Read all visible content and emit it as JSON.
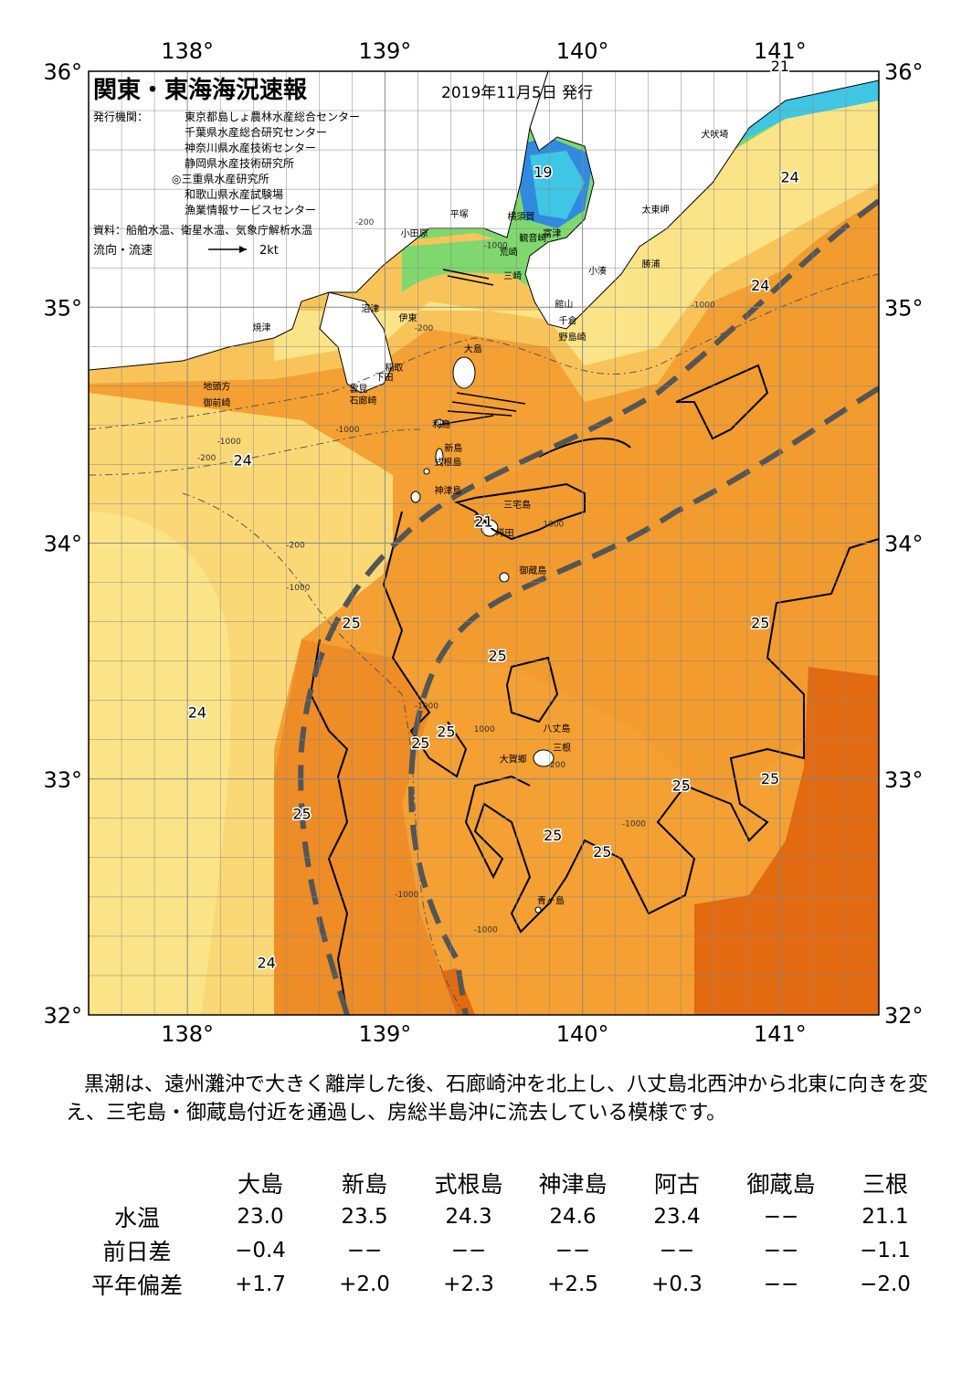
{
  "header": {
    "title": "関東・東海海況速報",
    "date": "2019年11月5日 発行",
    "publisher_label": "発行機関：",
    "publishers": [
      "東京都島しょ農林水産総合センター",
      "千葉県水産総合研究センター",
      "神奈川県水産技術センター",
      "静岡県水産技術研究所",
      "◎三重県水産研究所",
      "和歌山県水産試験場",
      "漁業情報サービスセンター"
    ],
    "source": "資料：船舶水温、衛星水温、気象庁解析水温",
    "current_legend": "流向・流速",
    "current_scale": "2kt"
  },
  "axes": {
    "lon_labels": [
      "138°",
      "139°",
      "140°",
      "141°"
    ],
    "lat_labels": [
      "36°",
      "35°",
      "34°",
      "33°",
      "32°"
    ],
    "lon_range": [
      137.5,
      141.5
    ],
    "lat_range": [
      32,
      36
    ]
  },
  "map_data": {
    "isotherm_labels": [
      {
        "text": "21",
        "lon": 141.0,
        "lat": 36.0
      },
      {
        "text": "19",
        "lon": 139.8,
        "lat": 35.55
      },
      {
        "text": "24",
        "lon": 141.05,
        "lat": 35.53
      },
      {
        "text": "24",
        "lon": 140.9,
        "lat": 35.07
      },
      {
        "text": "24",
        "lon": 138.28,
        "lat": 34.33
      },
      {
        "text": "21",
        "lon": 139.5,
        "lat": 34.07
      },
      {
        "text": "25",
        "lon": 138.83,
        "lat": 33.64
      },
      {
        "text": "25",
        "lon": 140.9,
        "lat": 33.64
      },
      {
        "text": "25",
        "lon": 139.57,
        "lat": 33.5
      },
      {
        "text": "24",
        "lon": 138.05,
        "lat": 33.26
      },
      {
        "text": "25",
        "lon": 139.31,
        "lat": 33.18
      },
      {
        "text": "25",
        "lon": 139.18,
        "lat": 33.13
      },
      {
        "text": "25",
        "lon": 140.5,
        "lat": 32.95
      },
      {
        "text": "25",
        "lon": 140.95,
        "lat": 32.98
      },
      {
        "text": "25",
        "lon": 138.58,
        "lat": 32.83
      },
      {
        "text": "25",
        "lon": 139.85,
        "lat": 32.74
      },
      {
        "text": "25",
        "lon": 140.1,
        "lat": 32.67
      },
      {
        "text": "24",
        "lon": 138.4,
        "lat": 32.2
      }
    ],
    "depth_labels": [
      {
        "text": "-200",
        "lon": 138.85,
        "lat": 35.35
      },
      {
        "text": "-1000",
        "lon": 139.5,
        "lat": 35.25
      },
      {
        "text": "-200",
        "lon": 139.15,
        "lat": 34.9
      },
      {
        "text": "-1000",
        "lon": 140.55,
        "lat": 35.0
      },
      {
        "text": "-1000",
        "lon": 138.15,
        "lat": 34.42
      },
      {
        "text": "-200",
        "lon": 138.05,
        "lat": 34.35
      },
      {
        "text": "-1000",
        "lon": 138.75,
        "lat": 34.47
      },
      {
        "text": "1000",
        "lon": 139.8,
        "lat": 34.07
      },
      {
        "text": "-200",
        "lon": 138.5,
        "lat": 33.98
      },
      {
        "text": "-1000",
        "lon": 138.5,
        "lat": 33.8
      },
      {
        "text": "1000",
        "lon": 139.45,
        "lat": 33.2
      },
      {
        "text": "-1000",
        "lon": 139.15,
        "lat": 33.3
      },
      {
        "text": "-200",
        "lon": 139.82,
        "lat": 33.05
      },
      {
        "text": "-1000",
        "lon": 140.2,
        "lat": 32.8
      },
      {
        "text": "-1000",
        "lon": 139.05,
        "lat": 32.5
      },
      {
        "text": "-1000",
        "lon": 139.45,
        "lat": 32.35
      }
    ],
    "places": [
      {
        "text": "犬吠埼",
        "lon": 140.6,
        "lat": 35.72
      },
      {
        "text": "太東岬",
        "lon": 140.3,
        "lat": 35.4
      },
      {
        "text": "勝浦",
        "lon": 140.3,
        "lat": 35.17
      },
      {
        "text": "小湊",
        "lon": 140.03,
        "lat": 35.14
      },
      {
        "text": "平塚",
        "lon": 139.33,
        "lat": 35.38
      },
      {
        "text": "横須賀",
        "lon": 139.62,
        "lat": 35.37
      },
      {
        "text": "観音崎",
        "lon": 139.68,
        "lat": 35.28
      },
      {
        "text": "富津",
        "lon": 139.8,
        "lat": 35.3
      },
      {
        "text": "小田原",
        "lon": 139.08,
        "lat": 35.3
      },
      {
        "text": "荒崎",
        "lon": 139.58,
        "lat": 35.22
      },
      {
        "text": "三崎",
        "lon": 139.6,
        "lat": 35.12
      },
      {
        "text": "館山",
        "lon": 139.86,
        "lat": 35.0
      },
      {
        "text": "千倉",
        "lon": 139.88,
        "lat": 34.93
      },
      {
        "text": "野島崎",
        "lon": 139.88,
        "lat": 34.86
      },
      {
        "text": "沼津",
        "lon": 138.88,
        "lat": 34.98
      },
      {
        "text": "伊東",
        "lon": 139.07,
        "lat": 34.94
      },
      {
        "text": "焼津",
        "lon": 138.33,
        "lat": 34.9
      },
      {
        "text": "大島",
        "lon": 139.4,
        "lat": 34.81
      },
      {
        "text": "稲取",
        "lon": 139.0,
        "lat": 34.73
      },
      {
        "text": "下田",
        "lon": 138.95,
        "lat": 34.69
      },
      {
        "text": "雲見",
        "lon": 138.82,
        "lat": 34.64
      },
      {
        "text": "石廊崎",
        "lon": 138.82,
        "lat": 34.59
      },
      {
        "text": "地頭方",
        "lon": 138.08,
        "lat": 34.65
      },
      {
        "text": "御前崎",
        "lon": 138.08,
        "lat": 34.58
      },
      {
        "text": "利島",
        "lon": 139.24,
        "lat": 34.49
      },
      {
        "text": "新島",
        "lon": 139.3,
        "lat": 34.39
      },
      {
        "text": "式根島",
        "lon": 139.25,
        "lat": 34.33
      },
      {
        "text": "神津島",
        "lon": 139.25,
        "lat": 34.21
      },
      {
        "text": "三宅島",
        "lon": 139.6,
        "lat": 34.15
      },
      {
        "text": "阿古",
        "lon": 139.45,
        "lat": 34.09
      },
      {
        "text": "坪田",
        "lon": 139.56,
        "lat": 34.03
      },
      {
        "text": "御蔵島",
        "lon": 139.68,
        "lat": 33.87
      },
      {
        "text": "八丈島",
        "lon": 139.8,
        "lat": 33.2
      },
      {
        "text": "三根",
        "lon": 139.85,
        "lat": 33.12
      },
      {
        "text": "大賀郷",
        "lon": 139.58,
        "lat": 33.07
      },
      {
        "text": "青ヶ島",
        "lon": 139.77,
        "lat": 32.47
      }
    ],
    "colors": {
      "sea_warm": "#f4a033",
      "sea_warmer": "#ee8c26",
      "sea_hot": "#e26a10",
      "sea_mid": "#f8c45a",
      "sea_cool": "#fbe488",
      "sea_cold_green": "#7ed86e",
      "sea_cold_cyan": "#3ec6e4",
      "sea_cold_blue": "#2f8ae0",
      "land": "#ffffff",
      "kuroshio": "#555555"
    }
  },
  "summary": "黒潮は、遠州灘沖で大きく離岸した後、石廊崎沖を北上し、八丈島北西沖から北東に向きを変え、三宅島・御蔵島付近を通過し、房総半島沖に流去している模様です。",
  "stations": {
    "columns": [
      "大島",
      "新島",
      "式根島",
      "神津島",
      "阿古",
      "御蔵島",
      "三根"
    ],
    "rows": [
      {
        "label": "水温",
        "values": [
          "23.0",
          "23.5",
          "24.3",
          "24.6",
          "23.4",
          "−−",
          "21.1"
        ]
      },
      {
        "label": "前日差",
        "values": [
          "−0.4",
          "−−",
          "−−",
          "−−",
          "−−",
          "−−",
          "−1.1"
        ]
      },
      {
        "label": "平年偏差",
        "values": [
          "+1.7",
          "+2.0",
          "+2.3",
          "+2.5",
          "+0.3",
          "−−",
          "−2.0"
        ]
      }
    ]
  }
}
